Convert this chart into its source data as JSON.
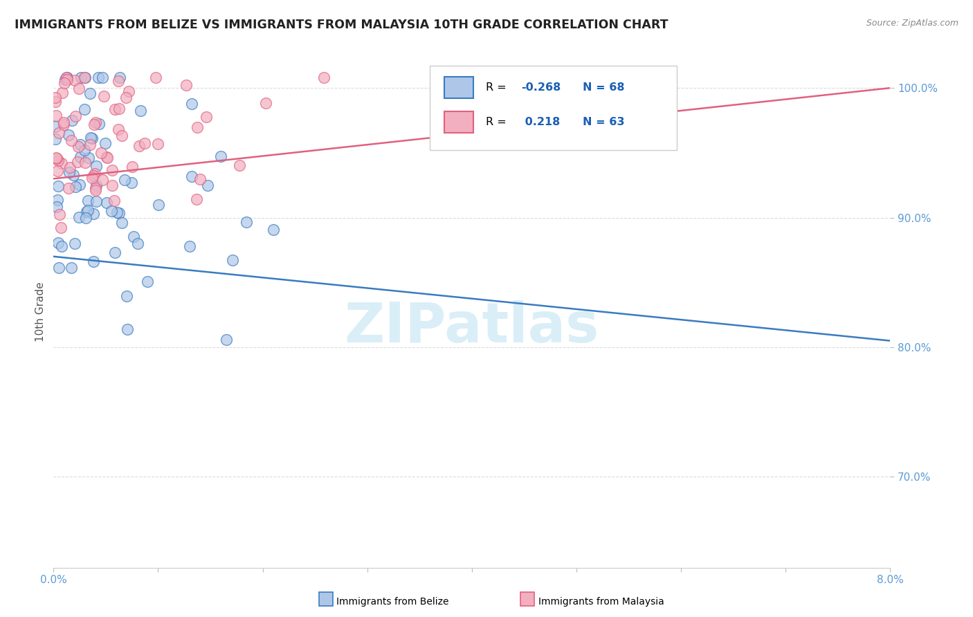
{
  "title": "IMMIGRANTS FROM BELIZE VS IMMIGRANTS FROM MALAYSIA 10TH GRADE CORRELATION CHART",
  "source_text": "Source: ZipAtlas.com",
  "ylabel": "10th Grade",
  "xmin": 0.0,
  "xmax": 8.0,
  "ymin": 63.0,
  "ymax": 102.5,
  "yticks": [
    70.0,
    80.0,
    90.0,
    100.0
  ],
  "color_belize": "#aec6e8",
  "color_malaysia": "#f2afc0",
  "color_belize_line": "#3a7bbf",
  "color_malaysia_line": "#e06080",
  "color_title": "#222222",
  "color_source": "#888888",
  "color_axis_label": "#5b9bd5",
  "color_legend_text": "#1a5fb4",
  "watermark_color": "#daeef7",
  "belize_trend_x0": 0.0,
  "belize_trend_y0": 87.0,
  "belize_trend_x1": 8.0,
  "belize_trend_y1": 80.5,
  "malaysia_trend_x0": 0.0,
  "malaysia_trend_y0": 93.0,
  "malaysia_trend_x1": 8.0,
  "malaysia_trend_y1": 100.0,
  "legend_entries": [
    {
      "label": "R = -0.268  N = 68",
      "color": "#aec6e8",
      "edge": "#3a7bbf"
    },
    {
      "label": "R =  0.218  N = 63",
      "color": "#f2afc0",
      "edge": "#e06080"
    }
  ],
  "bottom_legend": [
    {
      "label": "Immigrants from Belize",
      "color": "#aec6e8",
      "edge": "#3a7bbf"
    },
    {
      "label": "Immigrants from Malaysia",
      "color": "#f2afc0",
      "edge": "#e06080"
    }
  ]
}
